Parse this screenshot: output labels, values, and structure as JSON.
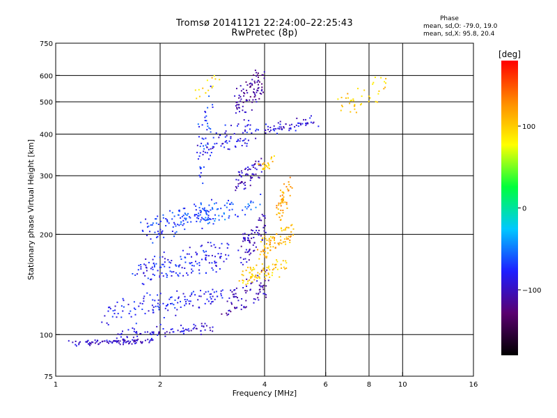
{
  "header": {
    "title_line1": "Tromsø 20141121 22:24:00–22:25:43",
    "title_line2": "RwPretec (8p)"
  },
  "phase_info": {
    "heading": "Phase",
    "o_label": "mean, sd,O: ",
    "o_values": "-79.0, 19.0",
    "x_label": "mean, sd,X: ",
    "x_values": "95.8, 20.4"
  },
  "chart_data": {
    "type": "scatter",
    "title": "Tromsø 20141121 22:24:00–22:25:43",
    "subtitle": "RwPretec (8p)",
    "xlabel": "Frequency [MHz]",
    "ylabel": "Stationary phase Virtual Height [km]",
    "x_scale": "log",
    "y_scale": "log",
    "xlim": [
      1,
      16
    ],
    "ylim": [
      75,
      750
    ],
    "x_ticks": [
      1,
      2,
      4,
      6,
      8,
      10,
      16
    ],
    "x_tick_labels": [
      "1",
      "2",
      "4",
      "6",
      "8",
      "10",
      "16"
    ],
    "x_gridlines": [
      2,
      4,
      6,
      8,
      10
    ],
    "y_ticks": [
      75,
      100,
      200,
      300,
      400,
      500,
      600,
      750
    ],
    "y_tick_labels": [
      "75",
      "100",
      "200",
      "300",
      "400",
      "500",
      "600",
      "750"
    ],
    "y_gridlines": [
      100,
      200,
      300,
      400,
      500,
      600
    ],
    "grid": true,
    "colorbar": {
      "label": "[deg]",
      "range": [
        -180,
        180
      ],
      "ticks": [
        100,
        0,
        -100
      ],
      "tick_labels": [
        "100",
        "0",
        "−100"
      ],
      "colors": [
        "#000000",
        "#5a0070",
        "#1e1eff",
        "#00c8ff",
        "#00ff3c",
        "#ffff00",
        "#ff8c00",
        "#ff0000"
      ]
    },
    "series": [
      {
        "polarization": "O",
        "phase_mean": -79.0,
        "phase_sd": 19.0,
        "traces": [
          {
            "f": [
              1.1,
              1.9
            ],
            "h": [
              93,
              97
            ],
            "n": 90,
            "spread": 0.012,
            "phase": -95
          },
          {
            "f": [
              1.5,
              2.8
            ],
            "h": [
              97,
              108
            ],
            "n": 80,
            "spread": 0.02,
            "phase": -92
          },
          {
            "f": [
              1.4,
              3.0
            ],
            "h": [
              108,
              140
            ],
            "n": 130,
            "spread": 0.03,
            "phase": -80
          },
          {
            "f": [
              1.7,
              3.1
            ],
            "h": [
              140,
              190
            ],
            "n": 150,
            "spread": 0.035,
            "phase": -80
          },
          {
            "f": [
              1.8,
              2.8
            ],
            "h": [
              190,
              250
            ],
            "n": 120,
            "spread": 0.035,
            "phase": -70
          },
          {
            "f": [
              3.0,
              4.1
            ],
            "h": [
              110,
              160
            ],
            "n": 80,
            "spread": 0.02,
            "phase": -105
          },
          {
            "f": [
              3.4,
              4.0
            ],
            "h": [
              160,
              230
            ],
            "n": 70,
            "spread": 0.02,
            "phase": -100
          },
          {
            "f": [
              2.6,
              3.8
            ],
            "h": [
              215,
              260
            ],
            "n": 60,
            "spread": 0.03,
            "phase": -60
          },
          {
            "f": [
              3.3,
              3.9
            ],
            "h": [
              270,
              340
            ],
            "n": 60,
            "spread": 0.02,
            "phase": -100
          },
          {
            "f": [
              2.6,
              3.8
            ],
            "h": [
              330,
              450
            ],
            "n": 80,
            "spread": 0.03,
            "phase": -85
          },
          {
            "f": [
              3.3,
              3.9
            ],
            "h": [
              440,
              640
            ],
            "n": 90,
            "spread": 0.03,
            "phase": -110
          },
          {
            "f": [
              2.6,
              2.8
            ],
            "h": [
              280,
              600
            ],
            "n": 40,
            "spread": 0.02,
            "phase": -70
          },
          {
            "f": [
              4.0,
              5.6
            ],
            "h": [
              400,
              450
            ],
            "n": 60,
            "spread": 0.02,
            "phase": -90
          }
        ]
      },
      {
        "polarization": "X",
        "phase_mean": 95.8,
        "phase_sd": 20.4,
        "traces": [
          {
            "f": [
              3.4,
              4.6
            ],
            "h": [
              140,
              170
            ],
            "n": 80,
            "spread": 0.02,
            "phase": 100
          },
          {
            "f": [
              3.9,
              4.8
            ],
            "h": [
              170,
              215
            ],
            "n": 80,
            "spread": 0.02,
            "phase": 110
          },
          {
            "f": [
              4.4,
              4.7
            ],
            "h": [
              215,
              300
            ],
            "n": 50,
            "spread": 0.02,
            "phase": 120
          },
          {
            "f": [
              3.9,
              4.2
            ],
            "h": [
              310,
              340
            ],
            "n": 25,
            "spread": 0.02,
            "phase": 105
          },
          {
            "f": [
              6.4,
              9.2
            ],
            "h": [
              450,
              610
            ],
            "n": 40,
            "spread": 0.02,
            "phase": 100
          },
          {
            "f": [
              2.5,
              3.0
            ],
            "h": [
              500,
              600
            ],
            "n": 15,
            "spread": 0.02,
            "phase": 95
          }
        ]
      }
    ]
  }
}
